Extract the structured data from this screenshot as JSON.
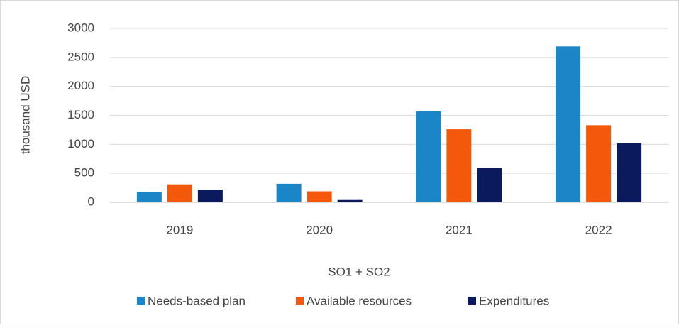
{
  "chart_data": {
    "type": "bar",
    "x_label": "SO1 + SO2",
    "y_label": "thousand USD",
    "categories": [
      "2019",
      "2020",
      "2021",
      "2022"
    ],
    "series": [
      {
        "name": "Needs-based plan",
        "color": "#1b86c7",
        "values": [
          180,
          320,
          1570,
          2690
        ]
      },
      {
        "name": "Available resources",
        "color": "#f4580a",
        "values": [
          310,
          190,
          1260,
          1330
        ]
      },
      {
        "name": "Expenditures",
        "color": "#0b1a5c",
        "values": [
          220,
          40,
          590,
          1020
        ]
      }
    ],
    "ylim": [
      0,
      3000
    ],
    "yticks": [
      0,
      500,
      1000,
      1500,
      2000,
      2500,
      3000
    ],
    "grid": true,
    "legend": "bottom"
  }
}
